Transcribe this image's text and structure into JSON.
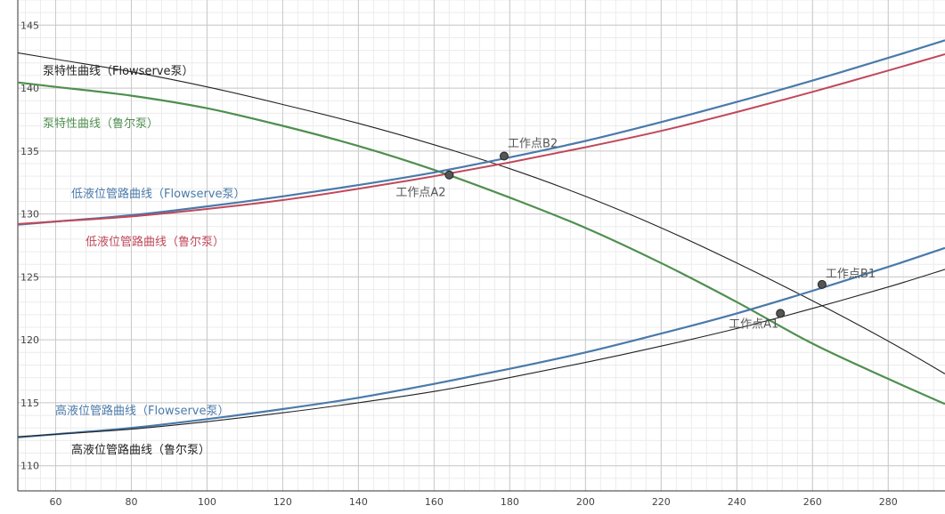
{
  "chart_data": {
    "type": "line",
    "title": "",
    "xlabel": "",
    "ylabel": "",
    "xlim": [
      50,
      295
    ],
    "ylim": [
      108,
      147
    ],
    "grid": true,
    "x_ticks": [
      60,
      80,
      100,
      120,
      140,
      160,
      180,
      200,
      220,
      240,
      260,
      280
    ],
    "x_tick_labels": [
      "60",
      "80",
      "100",
      "120",
      "140",
      "160",
      "180",
      "200",
      "220",
      "240",
      "260",
      "280"
    ],
    "y_ticks": [
      110,
      115,
      120,
      125,
      130,
      135,
      140,
      145
    ],
    "y_tick_labels": [
      "110",
      "115",
      "120",
      "125",
      "130",
      "135",
      "140",
      "145"
    ],
    "series": [
      {
        "name": "泵特性曲线（Flowserve泵）",
        "color": "#222222",
        "x": [
          60,
          80,
          100,
          120,
          140,
          160,
          180,
          200,
          220,
          240,
          260,
          280,
          295
        ],
        "y": [
          142.3,
          141.3,
          140.1,
          138.7,
          137.2,
          135.5,
          133.6,
          131.4,
          128.9,
          126.1,
          123.1,
          119.9,
          117.3
        ]
      },
      {
        "name": "泵特性曲线（鲁尔泵）",
        "color": "#4f8f4f",
        "x": [
          60,
          80,
          100,
          120,
          140,
          160,
          180,
          200,
          220,
          240,
          260,
          280,
          295
        ],
        "y": [
          140.1,
          139.4,
          138.4,
          137.0,
          135.4,
          133.5,
          131.3,
          128.9,
          126.1,
          123.0,
          119.7,
          116.9,
          114.9
        ]
      },
      {
        "name": "低液位管路曲线（Flowserve泵）",
        "color": "#4a7aaa",
        "x": [
          60,
          80,
          100,
          120,
          140,
          160,
          180,
          200,
          220,
          240,
          260,
          280,
          295
        ],
        "y": [
          129.4,
          129.9,
          130.6,
          131.4,
          132.3,
          133.3,
          134.5,
          135.8,
          137.3,
          138.9,
          140.6,
          142.4,
          143.8
        ]
      },
      {
        "name": "低液位管路曲线（鲁尔泵）",
        "color": "#c0485a",
        "x": [
          60,
          80,
          100,
          120,
          140,
          160,
          180,
          200,
          220,
          240,
          260,
          280,
          295
        ],
        "y": [
          129.4,
          129.8,
          130.4,
          131.1,
          132.0,
          133.0,
          134.1,
          135.3,
          136.6,
          138.1,
          139.7,
          141.4,
          142.7
        ]
      },
      {
        "name": "高液位管路曲线（Flowserve泵）",
        "color": "#4a7aaa",
        "x": [
          60,
          80,
          100,
          120,
          140,
          160,
          180,
          200,
          220,
          240,
          260,
          280,
          295
        ],
        "y": [
          112.5,
          113.0,
          113.7,
          114.5,
          115.4,
          116.5,
          117.7,
          119.0,
          120.5,
          122.1,
          123.9,
          125.8,
          127.3
        ]
      },
      {
        "name": "高液位管路曲线（鲁尔泵）",
        "color": "#222222",
        "x": [
          60,
          80,
          100,
          120,
          140,
          160,
          180,
          200,
          220,
          240,
          260,
          280,
          295
        ],
        "y": [
          112.5,
          112.9,
          113.5,
          114.2,
          115.0,
          115.9,
          117.0,
          118.2,
          119.5,
          120.9,
          122.5,
          124.2,
          125.6
        ]
      }
    ],
    "annotations": [
      {
        "text": "工作点A1",
        "x": 251.5,
        "y": 122.1
      },
      {
        "text": "工作点B1",
        "x": 262.5,
        "y": 124.4
      },
      {
        "text": "工作点A2",
        "x": 164.0,
        "y": 133.1
      },
      {
        "text": "工作点B2",
        "x": 178.5,
        "y": 134.6
      }
    ]
  }
}
